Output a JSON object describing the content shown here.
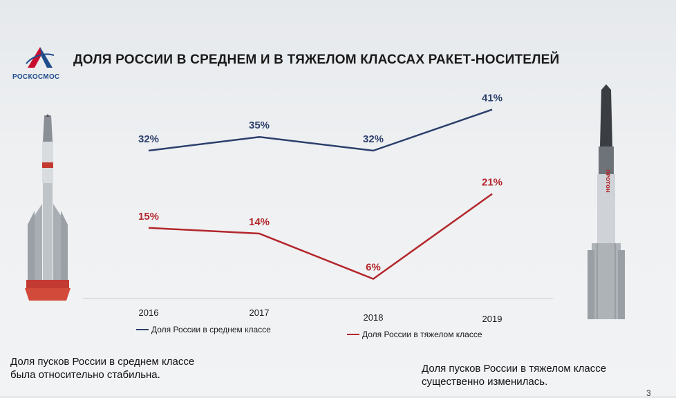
{
  "header": {
    "logo_text": "РОСКОСМОС",
    "title": "ДОЛЯ РОССИИ В СРЕДНЕМ И В ТЯЖЕЛОМ КЛАССАХ РАКЕТ-НОСИТЕЛЕЙ"
  },
  "chart_data": {
    "type": "line",
    "categories": [
      "2016",
      "2017",
      "2018",
      "2019"
    ],
    "series": [
      {
        "name": "Доля России в среднем классе",
        "values": [
          32,
          35,
          32,
          41
        ],
        "labels": [
          "32%",
          "35%",
          "32%",
          "41%"
        ],
        "color": "#2b3f6b"
      },
      {
        "name": "Доля России в тяжелом классе",
        "values": [
          15,
          14,
          6,
          21
        ],
        "labels": [
          "15%",
          "14%",
          "6%",
          "21%"
        ],
        "color": "#b3262b"
      }
    ],
    "legend": "bottom",
    "grid": false
  },
  "rocket_right_text": "ПРОТОН",
  "notes": {
    "left": [
      "Доля пусков России в среднем классе",
      "была относительно стабильна."
    ],
    "right": [
      "Доля пусков России в тяжелом классе",
      "существенно изменилась."
    ]
  },
  "page_number": "3"
}
